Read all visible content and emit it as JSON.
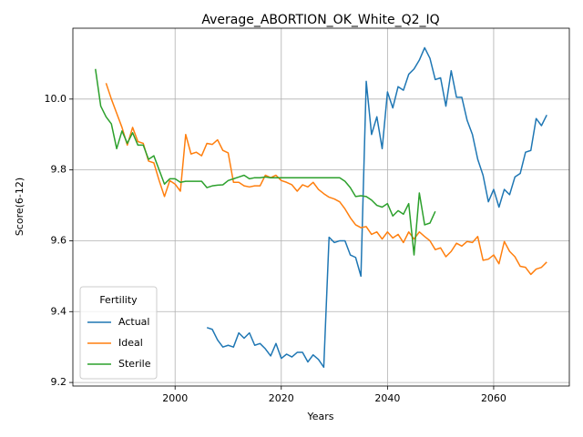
{
  "chart_data": {
    "type": "line",
    "title": "Average_ABORTION_OK_White_Q2_IQ",
    "x_label": "Years",
    "y_label": "Score(6-12)",
    "legend_title": "Fertility",
    "legend_position": "lower left",
    "grid": true,
    "xlim": [
      1980.75,
      2074.25
    ],
    "ylim": [
      9.19,
      10.2
    ],
    "xticks": [
      2000,
      2020,
      2040,
      2060
    ],
    "yticks": [
      9.2,
      9.4,
      9.6,
      9.8,
      {
        "value": 10,
        "label": "10.0"
      }
    ],
    "x": [
      1985,
      1986,
      1987,
      1988,
      1989,
      1990,
      1991,
      1992,
      1993,
      1994,
      1995,
      1996,
      1997,
      1998,
      1999,
      2000,
      2001,
      2002,
      2003,
      2004,
      2005,
      2006,
      2007,
      2008,
      2009,
      2010,
      2011,
      2012,
      2013,
      2014,
      2015,
      2016,
      2017,
      2018,
      2019,
      2020,
      2021,
      2022,
      2023,
      2024,
      2025,
      2026,
      2027,
      2028,
      2029,
      2030,
      2031,
      2032,
      2033,
      2034,
      2035,
      2036,
      2037,
      2038,
      2039,
      2040,
      2041,
      2042,
      2043,
      2044,
      2045,
      2046,
      2047,
      2048,
      2049,
      2050,
      2051,
      2052,
      2053,
      2054,
      2055,
      2056,
      2057,
      2058,
      2059,
      2060,
      2061,
      2062,
      2063,
      2064,
      2065,
      2066,
      2067,
      2068,
      2069,
      2070
    ],
    "series": [
      {
        "name": "Actual",
        "color": "#1f77b4",
        "values": [
          null,
          null,
          null,
          null,
          null,
          null,
          null,
          null,
          null,
          null,
          null,
          null,
          null,
          null,
          null,
          null,
          null,
          null,
          null,
          null,
          null,
          9.355,
          9.35,
          9.32,
          9.3,
          9.305,
          9.3,
          9.34,
          9.325,
          9.34,
          9.305,
          9.31,
          9.295,
          9.275,
          9.31,
          9.268,
          9.28,
          9.272,
          9.285,
          9.285,
          9.258,
          9.278,
          9.265,
          9.243,
          9.61,
          9.595,
          9.6,
          9.6,
          9.56,
          9.553,
          9.5,
          10.05,
          9.9,
          9.95,
          9.86,
          10.02,
          9.975,
          10.035,
          10.025,
          10.07,
          10.085,
          10.11,
          10.145,
          10.115,
          10.055,
          10.06,
          9.98,
          10.08,
          10.005,
          10.005,
          9.94,
          9.9,
          9.83,
          9.785,
          9.71,
          9.745,
          9.695,
          9.745,
          9.73,
          9.78,
          9.79,
          9.85,
          9.855,
          9.945,
          9.925,
          9.955
        ]
      },
      {
        "name": "Ideal",
        "color": "#ff7f0e",
        "values": [
          null,
          null,
          10.045,
          10.0,
          9.96,
          9.92,
          9.87,
          9.92,
          9.88,
          9.875,
          9.825,
          9.82,
          9.77,
          9.725,
          9.77,
          9.76,
          9.74,
          9.9,
          9.845,
          9.85,
          9.84,
          9.875,
          9.872,
          9.885,
          9.855,
          9.848,
          9.765,
          9.765,
          9.755,
          9.752,
          9.755,
          9.755,
          9.785,
          9.778,
          9.785,
          9.77,
          9.765,
          9.758,
          9.74,
          9.758,
          9.752,
          9.765,
          9.745,
          9.733,
          9.723,
          9.718,
          9.71,
          9.69,
          9.665,
          9.645,
          9.637,
          9.64,
          9.618,
          9.625,
          9.605,
          9.625,
          9.608,
          9.618,
          9.595,
          9.625,
          9.605,
          9.625,
          9.612,
          9.6,
          9.575,
          9.58,
          9.555,
          9.57,
          9.593,
          9.585,
          9.598,
          9.595,
          9.612,
          9.545,
          9.548,
          9.56,
          9.535,
          9.598,
          9.57,
          9.555,
          9.528,
          9.525,
          9.505,
          9.52,
          9.525,
          9.54
        ]
      },
      {
        "name": "Sterile",
        "color": "#2ca02c",
        "values": [
          10.085,
          9.98,
          9.95,
          9.93,
          9.86,
          9.91,
          9.875,
          9.905,
          9.87,
          9.87,
          9.83,
          9.84,
          9.8,
          9.76,
          9.775,
          9.775,
          9.765,
          9.768,
          9.768,
          9.768,
          9.768,
          9.75,
          9.755,
          9.757,
          9.758,
          9.77,
          9.775,
          9.78,
          9.785,
          9.775,
          9.778,
          9.778,
          9.78,
          9.778,
          9.778,
          9.778,
          9.778,
          9.778,
          9.778,
          9.778,
          9.778,
          9.778,
          9.778,
          9.778,
          9.778,
          9.778,
          9.778,
          9.768,
          9.75,
          9.725,
          9.727,
          9.725,
          9.715,
          9.7,
          9.695,
          9.705,
          9.67,
          9.685,
          9.675,
          9.705,
          9.56,
          9.735,
          9.645,
          9.65,
          9.683,
          null,
          null,
          null,
          null,
          null,
          null,
          null,
          null,
          null,
          null,
          null,
          null,
          null,
          null,
          null,
          null,
          null,
          null,
          null,
          null,
          null
        ]
      }
    ]
  }
}
